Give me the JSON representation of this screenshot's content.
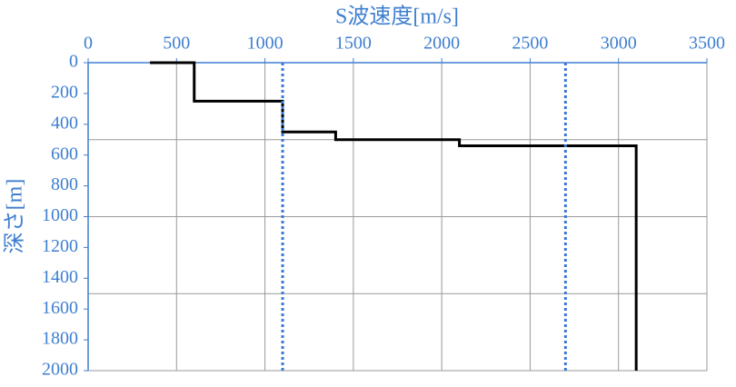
{
  "chart_data": {
    "type": "line",
    "xlabel": "S波速度[m/s]",
    "ylabel": "深さ[m]",
    "xaxis_position": "top",
    "y_inverted": true,
    "xlim": [
      0,
      3500
    ],
    "xticks": [
      0,
      500,
      1000,
      1500,
      2000,
      2500,
      3000,
      3500
    ],
    "ylim": [
      0,
      2000
    ],
    "yticks": [
      0,
      200,
      400,
      600,
      800,
      1000,
      1200,
      1400,
      1600,
      1800,
      2000
    ],
    "xgrid": true,
    "ygrid": [
      500,
      1000,
      1500,
      2000
    ],
    "axis_color": "#3f7fd0",
    "grid_color": "#9a9a9a",
    "series": [
      {
        "color": "#000000",
        "dash": "solid",
        "x": [
          350,
          600,
          600,
          1100,
          1100,
          1400,
          1400,
          2100,
          2100,
          3100,
          3100
        ],
        "values": [
          0,
          0,
          250,
          250,
          450,
          450,
          500,
          500,
          540,
          540,
          2000
        ]
      },
      {
        "color": "#3a78d8",
        "dash": "dotted",
        "x": [
          1100,
          1100
        ],
        "values": [
          0,
          2000
        ]
      },
      {
        "color": "#3a78d8",
        "dash": "dotted",
        "x": [
          2700,
          2700
        ],
        "values": [
          0,
          2000
        ]
      }
    ]
  }
}
